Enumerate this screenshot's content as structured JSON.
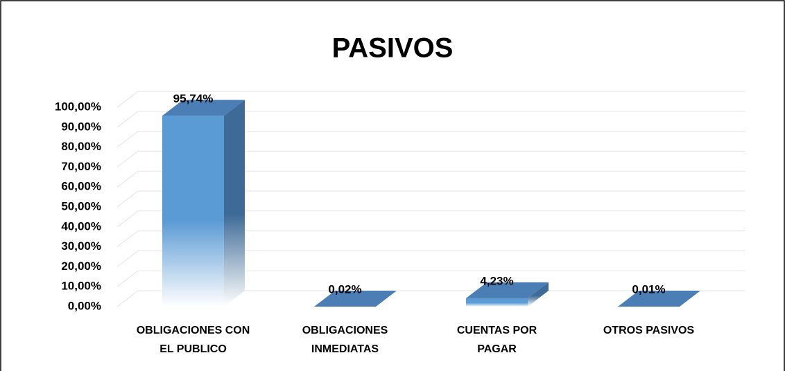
{
  "chart_data": {
    "type": "bar3d",
    "title": "PASIVOS",
    "categories": [
      [
        "OBLIGACIONES CON",
        "EL PUBLICO"
      ],
      [
        "OBLIGACIONES",
        "INMEDIATAS"
      ],
      [
        "CUENTAS POR",
        "PAGAR"
      ],
      [
        "OTROS PASIVOS"
      ]
    ],
    "values": [
      95.74,
      0.02,
      4.23,
      0.01
    ],
    "value_labels": [
      "95,74%",
      "0,02%",
      "4,23%",
      "0,01%"
    ],
    "color": "#5b9bd5",
    "ylim": [
      0,
      100
    ],
    "yticks": [
      {
        "value": 0,
        "label": "0,00%"
      },
      {
        "value": 10,
        "label": "10,00%"
      },
      {
        "value": 20,
        "label": "20,00%"
      },
      {
        "value": 30,
        "label": "30,00%"
      },
      {
        "value": 40,
        "label": "40,00%"
      },
      {
        "value": 50,
        "label": "50,00%"
      },
      {
        "value": 60,
        "label": "60,00%"
      },
      {
        "value": 70,
        "label": "70,00%"
      },
      {
        "value": 80,
        "label": "80,00%"
      },
      {
        "value": 90,
        "label": "90,00%"
      },
      {
        "value": 100,
        "label": "100,00%"
      }
    ],
    "grid": true
  }
}
